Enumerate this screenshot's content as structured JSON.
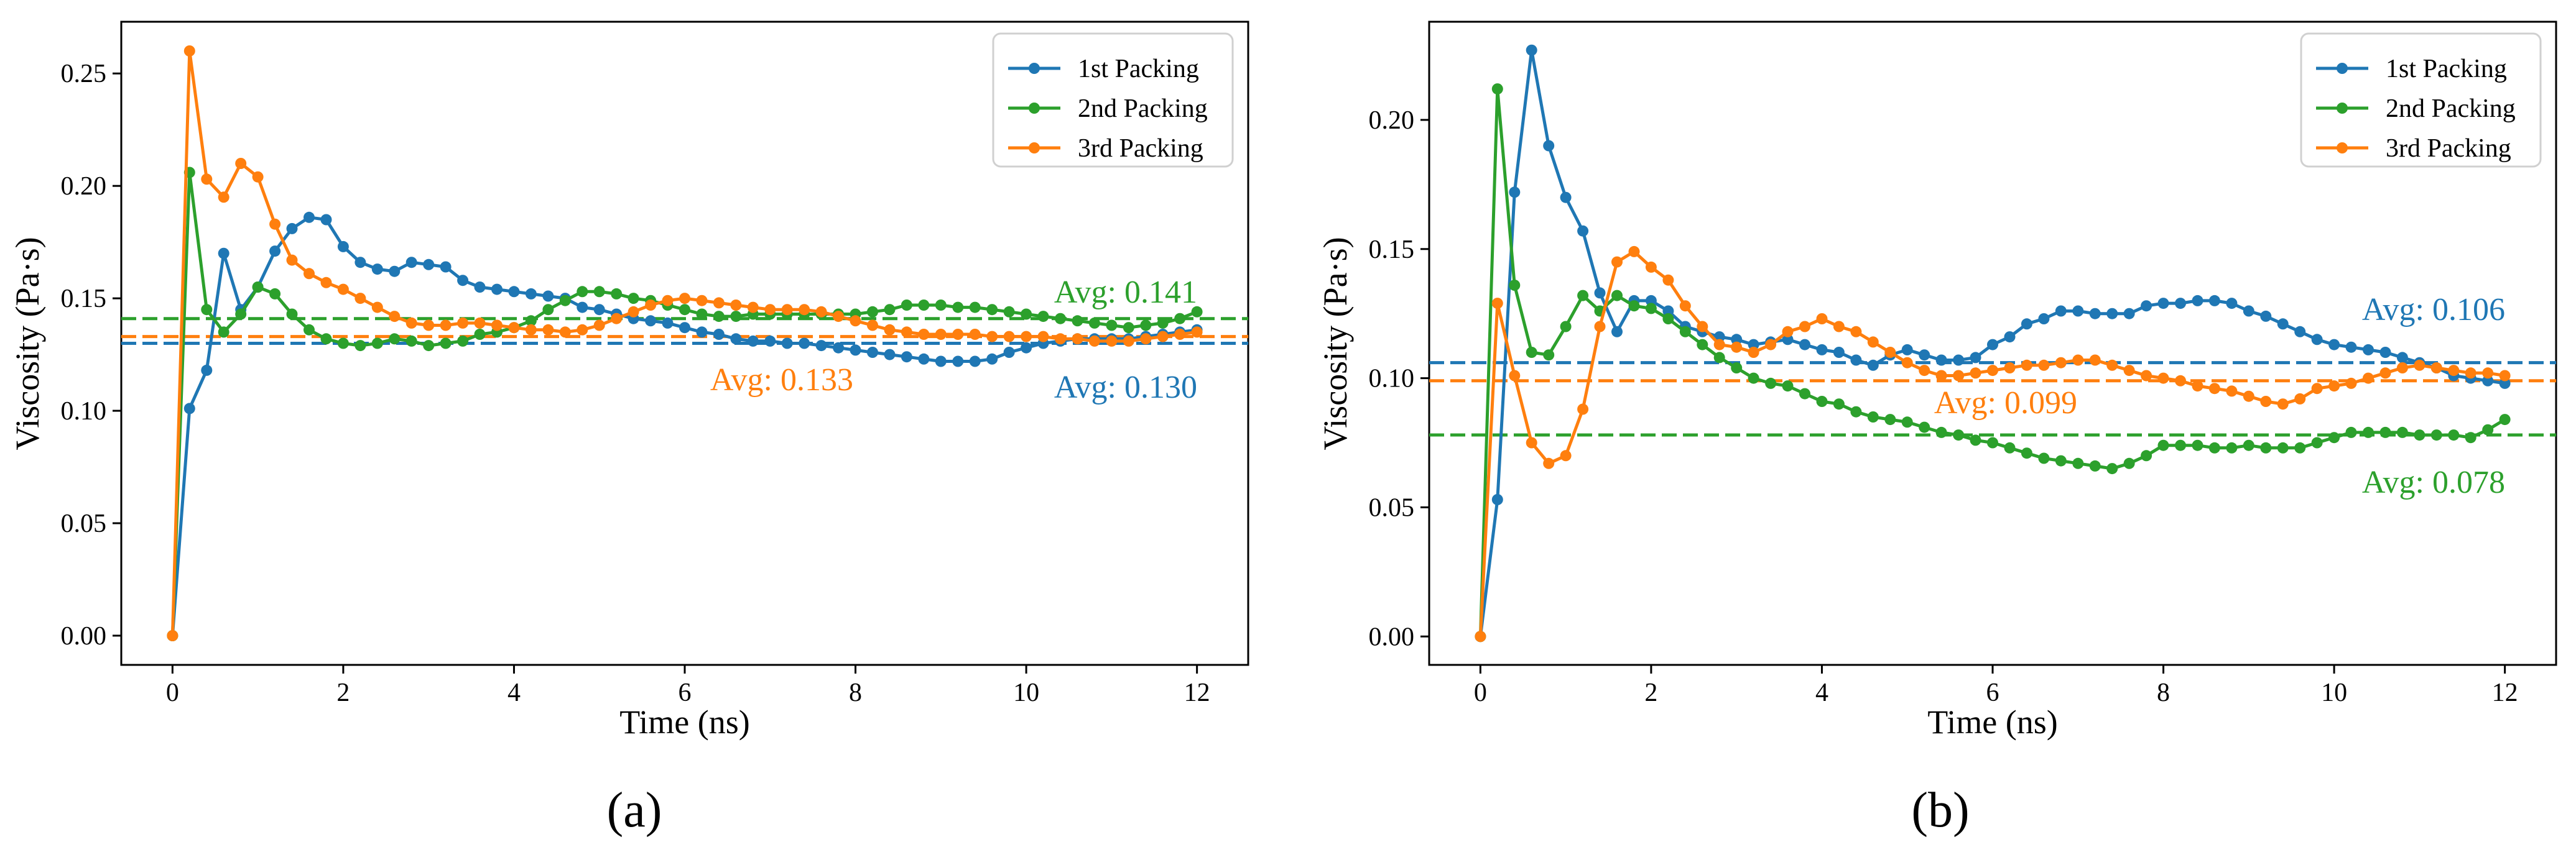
{
  "colors": {
    "blue": "#1f77b4",
    "green": "#2ca02c",
    "orange": "#ff7f0e"
  },
  "chart_data": [
    {
      "type": "line",
      "panel_label": "(a)",
      "xlabel": "Time (ns)",
      "ylabel": "Viscosity (Pa·s)",
      "xlim": [
        -0.6,
        12.6
      ],
      "ylim": [
        -0.013,
        0.273
      ],
      "xticks": [
        0,
        2,
        4,
        6,
        8,
        10,
        12
      ],
      "yticks": [
        0.0,
        0.05,
        0.1,
        0.15,
        0.2,
        0.25
      ],
      "xtick_labels": [
        "0",
        "2",
        "4",
        "6",
        "8",
        "10",
        "12"
      ],
      "ytick_labels": [
        "0.00",
        "0.05",
        "0.10",
        "0.15",
        "0.20",
        "0.25"
      ],
      "legend": {
        "position": "top-right",
        "entries": [
          "1st Packing",
          "2nd Packing",
          "3rd Packing"
        ]
      },
      "series": [
        {
          "name": "1st Packing",
          "color": "#1f77b4",
          "values": [
            0.0,
            0.101,
            0.118,
            0.17,
            0.145,
            0.155,
            0.171,
            0.181,
            0.186,
            0.185,
            0.173,
            0.166,
            0.163,
            0.162,
            0.166,
            0.165,
            0.164,
            0.158,
            0.155,
            0.154,
            0.153,
            0.152,
            0.151,
            0.15,
            0.146,
            0.145,
            0.143,
            0.141,
            0.14,
            0.139,
            0.137,
            0.135,
            0.134,
            0.132,
            0.131,
            0.131,
            0.13,
            0.13,
            0.129,
            0.128,
            0.127,
            0.126,
            0.125,
            0.124,
            0.123,
            0.122,
            0.122,
            0.122,
            0.123,
            0.126,
            0.128,
            0.13,
            0.131,
            0.132,
            0.132,
            0.132,
            0.132,
            0.133,
            0.134,
            0.135,
            0.136
          ]
        },
        {
          "name": "2nd Packing",
          "color": "#2ca02c",
          "values": [
            0.0,
            0.206,
            0.145,
            0.135,
            0.143,
            0.155,
            0.152,
            0.143,
            0.136,
            0.132,
            0.13,
            0.129,
            0.13,
            0.132,
            0.131,
            0.129,
            0.13,
            0.131,
            0.134,
            0.135,
            0.137,
            0.14,
            0.145,
            0.149,
            0.153,
            0.153,
            0.152,
            0.15,
            0.149,
            0.147,
            0.145,
            0.143,
            0.142,
            0.142,
            0.143,
            0.143,
            0.143,
            0.143,
            0.143,
            0.143,
            0.143,
            0.144,
            0.145,
            0.147,
            0.147,
            0.147,
            0.146,
            0.146,
            0.145,
            0.144,
            0.143,
            0.142,
            0.141,
            0.14,
            0.139,
            0.138,
            0.137,
            0.138,
            0.139,
            0.141,
            0.144
          ]
        },
        {
          "name": "3rd Packing",
          "color": "#ff7f0e",
          "values": [
            0.0,
            0.26,
            0.203,
            0.195,
            0.21,
            0.204,
            0.183,
            0.167,
            0.161,
            0.157,
            0.154,
            0.15,
            0.146,
            0.142,
            0.139,
            0.138,
            0.138,
            0.139,
            0.139,
            0.138,
            0.137,
            0.136,
            0.136,
            0.135,
            0.136,
            0.138,
            0.141,
            0.144,
            0.147,
            0.149,
            0.15,
            0.149,
            0.148,
            0.147,
            0.146,
            0.145,
            0.145,
            0.145,
            0.144,
            0.142,
            0.14,
            0.138,
            0.136,
            0.135,
            0.134,
            0.134,
            0.134,
            0.134,
            0.133,
            0.133,
            0.133,
            0.133,
            0.132,
            0.132,
            0.131,
            0.131,
            0.131,
            0.132,
            0.133,
            0.134,
            0.135
          ]
        }
      ],
      "averages": [
        {
          "name": "1st Packing",
          "value": 0.13,
          "label": "Avg: 0.130",
          "color": "#1f77b4"
        },
        {
          "name": "2nd Packing",
          "value": 0.141,
          "label": "Avg: 0.141",
          "color": "#2ca02c"
        },
        {
          "name": "3rd Packing",
          "value": 0.133,
          "label": "Avg: 0.133",
          "color": "#ff7f0e"
        }
      ]
    },
    {
      "type": "line",
      "panel_label": "(b)",
      "xlabel": "Time (ns)",
      "ylabel": "Viscosity (Pa·s)",
      "xlim": [
        -0.6,
        12.6
      ],
      "ylim": [
        -0.011,
        0.238
      ],
      "xticks": [
        0,
        2,
        4,
        6,
        8,
        10,
        12
      ],
      "yticks": [
        0.0,
        0.05,
        0.1,
        0.15,
        0.2
      ],
      "xtick_labels": [
        "0",
        "2",
        "4",
        "6",
        "8",
        "10",
        "12"
      ],
      "ytick_labels": [
        "0.00",
        "0.05",
        "0.10",
        "0.15",
        "0.20"
      ],
      "legend": {
        "position": "top-right",
        "entries": [
          "1st Packing",
          "2nd Packing",
          "3rd Packing"
        ]
      },
      "series": [
        {
          "name": "1st Packing",
          "color": "#1f77b4",
          "values": [
            0.0,
            0.053,
            0.172,
            0.227,
            0.19,
            0.17,
            0.157,
            0.133,
            0.118,
            0.13,
            0.13,
            0.126,
            0.12,
            0.118,
            0.116,
            0.115,
            0.113,
            0.114,
            0.115,
            0.113,
            0.111,
            0.11,
            0.107,
            0.105,
            0.109,
            0.111,
            0.109,
            0.107,
            0.107,
            0.108,
            0.113,
            0.116,
            0.121,
            0.123,
            0.126,
            0.126,
            0.125,
            0.125,
            0.125,
            0.128,
            0.129,
            0.129,
            0.13,
            0.13,
            0.129,
            0.126,
            0.124,
            0.121,
            0.118,
            0.115,
            0.113,
            0.112,
            0.111,
            0.11,
            0.108,
            0.106,
            0.104,
            0.101,
            0.1,
            0.099,
            0.098
          ]
        },
        {
          "name": "2nd Packing",
          "color": "#2ca02c",
          "values": [
            0.0,
            0.212,
            0.136,
            0.11,
            0.109,
            0.12,
            0.132,
            0.126,
            0.132,
            0.128,
            0.127,
            0.123,
            0.118,
            0.113,
            0.108,
            0.104,
            0.1,
            0.098,
            0.097,
            0.094,
            0.091,
            0.09,
            0.087,
            0.085,
            0.084,
            0.083,
            0.081,
            0.079,
            0.078,
            0.076,
            0.075,
            0.073,
            0.071,
            0.069,
            0.068,
            0.067,
            0.066,
            0.065,
            0.067,
            0.07,
            0.074,
            0.074,
            0.074,
            0.073,
            0.073,
            0.074,
            0.073,
            0.073,
            0.073,
            0.075,
            0.077,
            0.079,
            0.079,
            0.079,
            0.079,
            0.078,
            0.078,
            0.078,
            0.077,
            0.08,
            0.084
          ]
        },
        {
          "name": "3rd Packing",
          "color": "#ff7f0e",
          "values": [
            0.0,
            0.129,
            0.101,
            0.075,
            0.067,
            0.07,
            0.088,
            0.12,
            0.145,
            0.149,
            0.143,
            0.138,
            0.128,
            0.12,
            0.113,
            0.112,
            0.11,
            0.113,
            0.118,
            0.12,
            0.123,
            0.12,
            0.118,
            0.114,
            0.11,
            0.106,
            0.103,
            0.101,
            0.101,
            0.102,
            0.103,
            0.104,
            0.105,
            0.105,
            0.106,
            0.107,
            0.107,
            0.105,
            0.103,
            0.101,
            0.1,
            0.099,
            0.097,
            0.096,
            0.095,
            0.093,
            0.091,
            0.09,
            0.092,
            0.096,
            0.097,
            0.098,
            0.1,
            0.102,
            0.104,
            0.105,
            0.104,
            0.103,
            0.102,
            0.102,
            0.101
          ]
        }
      ],
      "averages": [
        {
          "name": "1st Packing",
          "value": 0.106,
          "label": "Avg: 0.106",
          "color": "#1f77b4"
        },
        {
          "name": "2nd Packing",
          "value": 0.078,
          "label": "Avg: 0.078",
          "color": "#2ca02c"
        },
        {
          "name": "3rd Packing",
          "value": 0.099,
          "label": "Avg: 0.099",
          "color": "#ff7f0e"
        }
      ]
    }
  ]
}
